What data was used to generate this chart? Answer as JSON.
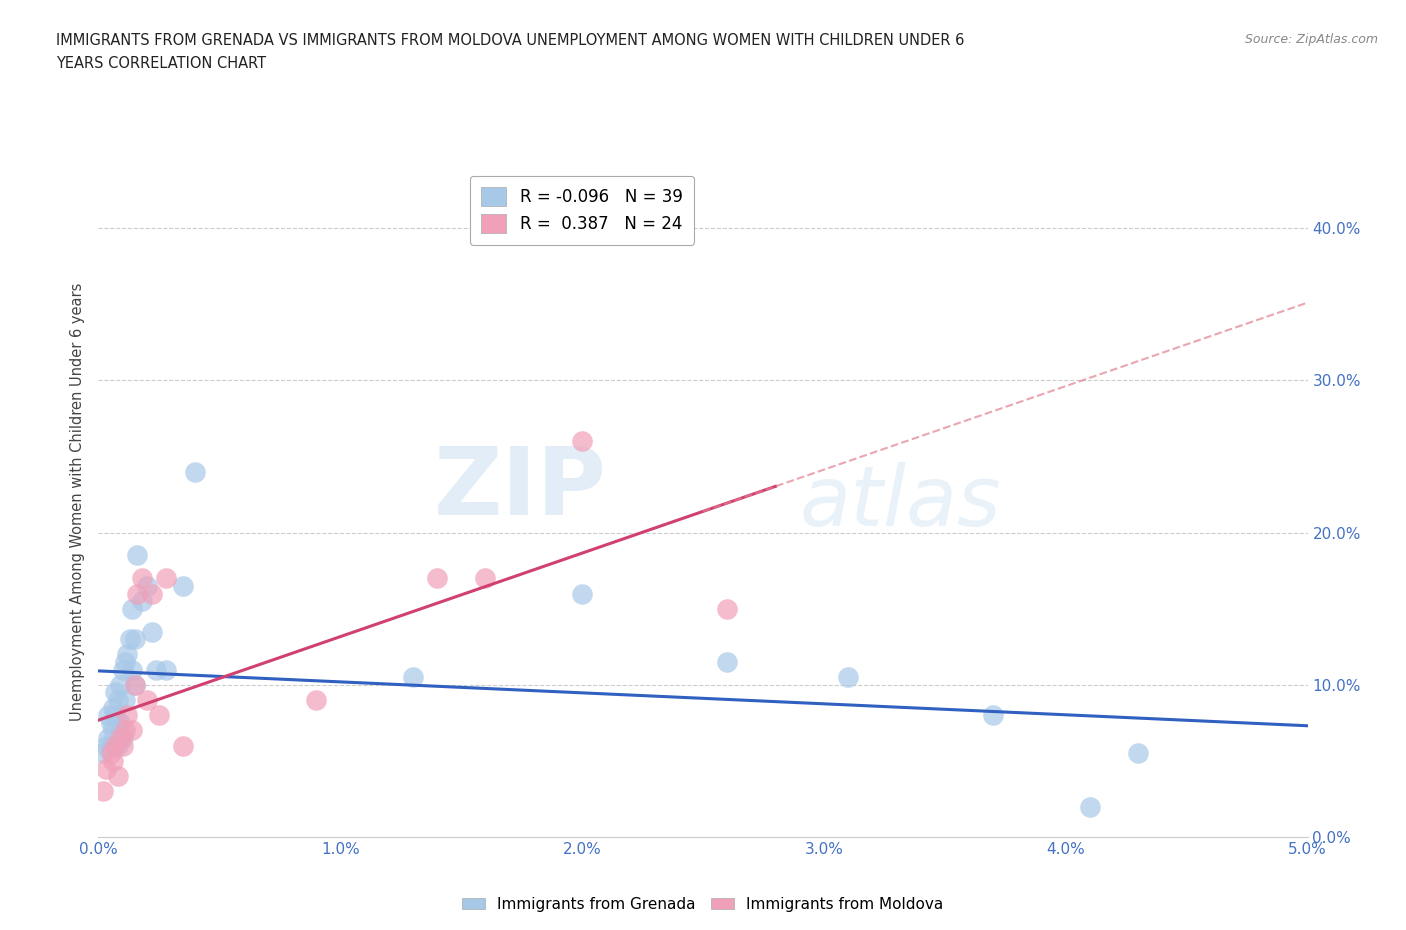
{
  "title_line1": "IMMIGRANTS FROM GRENADA VS IMMIGRANTS FROM MOLDOVA UNEMPLOYMENT AMONG WOMEN WITH CHILDREN UNDER 6",
  "title_line2": "YEARS CORRELATION CHART",
  "source": "Source: ZipAtlas.com",
  "ylabel": "Unemployment Among Women with Children Under 6 years",
  "xlim": [
    0.0,
    0.05
  ],
  "ylim": [
    0.0,
    0.44
  ],
  "xticks": [
    0.0,
    0.01,
    0.02,
    0.03,
    0.04,
    0.05
  ],
  "yticks": [
    0.0,
    0.1,
    0.2,
    0.3,
    0.4
  ],
  "ytick_labels": [
    "0.0%",
    "10.0%",
    "20.0%",
    "30.0%",
    "40.0%"
  ],
  "xtick_labels": [
    "0.0%",
    "1.0%",
    "2.0%",
    "3.0%",
    "4.0%",
    "5.0%"
  ],
  "grenada_R": -0.096,
  "grenada_N": 39,
  "moldova_R": 0.387,
  "moldova_N": 24,
  "grenada_color": "#a8c8e8",
  "moldova_color": "#f0a0b8",
  "grenada_line_color": "#3060c0",
  "moldova_line_color": "#d04070",
  "moldova_dash_color": "#e08090",
  "background_color": "#ffffff",
  "watermark_zip": "ZIP",
  "watermark_atlas": "atlas",
  "grenada_x": [
    0.0002,
    0.0003,
    0.0004,
    0.0004,
    0.0005,
    0.0005,
    0.0006,
    0.0006,
    0.0007,
    0.0007,
    0.0008,
    0.0008,
    0.0009,
    0.0009,
    0.001,
    0.001,
    0.0011,
    0.0011,
    0.0012,
    0.0013,
    0.0014,
    0.0014,
    0.0015,
    0.0015,
    0.0016,
    0.0018,
    0.002,
    0.0022,
    0.0024,
    0.0028,
    0.0035,
    0.004,
    0.013,
    0.02,
    0.026,
    0.031,
    0.037,
    0.041,
    0.043
  ],
  "grenada_y": [
    0.055,
    0.06,
    0.065,
    0.08,
    0.06,
    0.075,
    0.07,
    0.085,
    0.08,
    0.095,
    0.06,
    0.09,
    0.075,
    0.1,
    0.065,
    0.11,
    0.09,
    0.115,
    0.12,
    0.13,
    0.11,
    0.15,
    0.1,
    0.13,
    0.185,
    0.155,
    0.165,
    0.135,
    0.11,
    0.11,
    0.165,
    0.24,
    0.105,
    0.16,
    0.115,
    0.105,
    0.08,
    0.02,
    0.055
  ],
  "moldova_x": [
    0.0002,
    0.0003,
    0.0005,
    0.0006,
    0.0007,
    0.0008,
    0.0009,
    0.001,
    0.0011,
    0.0012,
    0.0014,
    0.0015,
    0.0016,
    0.0018,
    0.002,
    0.0022,
    0.0025,
    0.0028,
    0.0035,
    0.009,
    0.014,
    0.016,
    0.02,
    0.026
  ],
  "moldova_y": [
    0.03,
    0.045,
    0.055,
    0.05,
    0.06,
    0.04,
    0.065,
    0.06,
    0.07,
    0.08,
    0.07,
    0.1,
    0.16,
    0.17,
    0.09,
    0.16,
    0.08,
    0.17,
    0.06,
    0.09,
    0.17,
    0.17,
    0.26,
    0.15
  ]
}
